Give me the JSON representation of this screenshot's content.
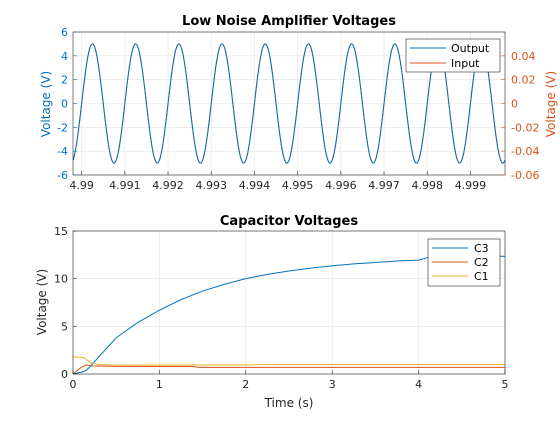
{
  "colors": {
    "blue": "#0072BD",
    "orange": "#D95319",
    "yellow": "#EDB120",
    "grid": "#e3e3e3"
  },
  "chart_data": [
    {
      "type": "line",
      "title": "Low Noise Amplifier Voltages",
      "xlabel": "",
      "ylabel": "Voltage (V)",
      "ylabel_right": "Voltage (V)",
      "xlim": [
        4.9898,
        4.9998
      ],
      "ylim": [
        -6,
        6
      ],
      "ylim_right": [
        -0.06,
        0.06
      ],
      "x_ticks": [
        4.99,
        4.991,
        4.992,
        4.993,
        4.994,
        4.995,
        4.996,
        4.997,
        4.998,
        4.999
      ],
      "x_tick_labels": [
        "4.99",
        "4.991",
        "4.992",
        "4.993",
        "4.994",
        "4.995",
        "4.996",
        "4.997",
        "4.998",
        "4.999"
      ],
      "y_ticks": [
        -6,
        -4,
        -2,
        0,
        2,
        4,
        6
      ],
      "y_tick_labels": [
        "-6",
        "-4",
        "-2",
        "0",
        "2",
        "4",
        "6"
      ],
      "y_ticks_right": [
        -0.06,
        -0.04,
        -0.02,
        0,
        0.02,
        0.04
      ],
      "y_tick_labels_right": [
        "-0.06",
        "-0.04",
        "-0.02",
        "0",
        "0.02",
        "0.04"
      ],
      "grid": true,
      "legend": "top-right",
      "series": [
        {
          "name": "Output",
          "axis": "left",
          "amplitude": 5,
          "frequency_hz": 1000,
          "peak_times": [
            4.99025,
            4.99125,
            4.99225,
            4.99325,
            4.99425,
            4.99525,
            4.99625,
            4.99725,
            4.99825,
            4.99925
          ]
        },
        {
          "name": "Input",
          "axis": "right",
          "amplitude": 0.05,
          "frequency_hz": 1000,
          "peak_times": [
            4.99025,
            4.99125,
            4.99225,
            4.99325,
            4.99425,
            4.99525,
            4.99625,
            4.99725,
            4.99825,
            4.99925
          ]
        }
      ]
    },
    {
      "type": "line",
      "title": "Capacitor Voltages",
      "xlabel": "Time (s)",
      "ylabel": "Voltage (V)",
      "xlim": [
        0,
        5
      ],
      "ylim": [
        0,
        15
      ],
      "x_ticks": [
        0,
        1,
        2,
        3,
        4,
        5
      ],
      "x_tick_labels": [
        "0",
        "1",
        "2",
        "3",
        "4",
        "5"
      ],
      "y_ticks": [
        0,
        5,
        10,
        15
      ],
      "y_tick_labels": [
        "0",
        "5",
        "10",
        "15"
      ],
      "grid": true,
      "legend": "top-right",
      "series": [
        {
          "name": "C3",
          "x": [
            0,
            0.1,
            0.15,
            0.2,
            0.3,
            0.5,
            0.75,
            1.0,
            1.25,
            1.5,
            1.75,
            2.0,
            2.25,
            2.5,
            2.75,
            3.0,
            3.25,
            3.5,
            3.75,
            4.0,
            4.1,
            4.5,
            5.0
          ],
          "y": [
            0,
            0.2,
            0.35,
            0.8,
            1.8,
            3.8,
            5.4,
            6.7,
            7.8,
            8.7,
            9.4,
            10.0,
            10.45,
            10.8,
            11.1,
            11.35,
            11.55,
            11.7,
            11.85,
            11.95,
            12.2,
            12.3,
            12.35
          ]
        },
        {
          "name": "C2",
          "x": [
            0,
            0.08,
            0.15,
            0.2,
            0.5,
            1.0,
            1.4,
            1.45,
            2.0,
            3.0,
            4.0,
            5.0
          ],
          "y": [
            0,
            0.6,
            0.95,
            0.85,
            0.8,
            0.78,
            0.78,
            0.7,
            0.7,
            0.7,
            0.7,
            0.7
          ]
        },
        {
          "name": "C1",
          "x": [
            0,
            0.02,
            0.12,
            0.2,
            0.3,
            0.5,
            1.0,
            2.0,
            2.2,
            3.0,
            4.0,
            5.0
          ],
          "y": [
            1.8,
            1.8,
            1.75,
            1.2,
            1.0,
            0.95,
            0.95,
            0.95,
            1.0,
            1.0,
            1.0,
            1.0
          ]
        }
      ]
    }
  ]
}
